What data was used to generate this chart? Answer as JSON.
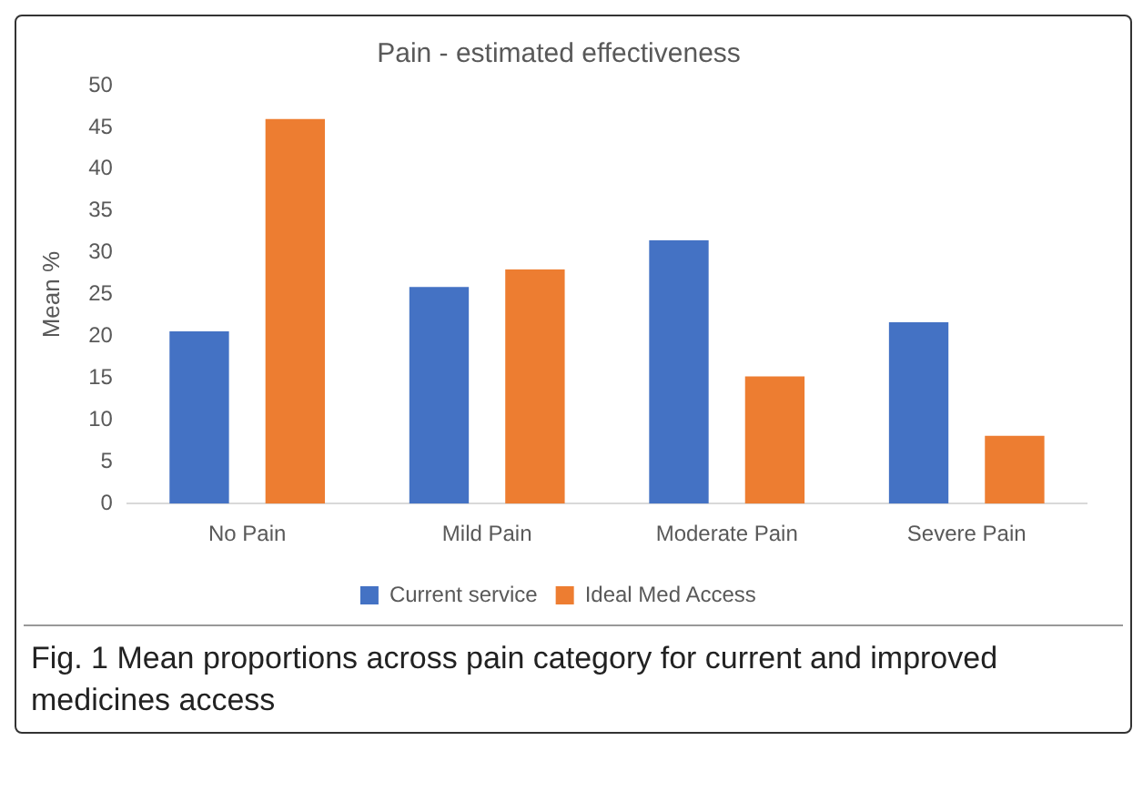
{
  "chart_data": {
    "type": "bar",
    "title": "Pain - estimated effectiveness",
    "ylabel": "Mean %",
    "categories": [
      "No Pain",
      "Mild Pain",
      "Moderate Pain",
      "Severe Pain"
    ],
    "series": [
      {
        "name": "Current service",
        "color": "#4472c4",
        "values": [
          20.6,
          25.9,
          31.5,
          21.7
        ]
      },
      {
        "name": "Ideal Med Access",
        "color": "#ed7d31",
        "values": [
          46.0,
          28.0,
          15.2,
          8.1
        ]
      }
    ],
    "ylim": [
      0,
      50
    ],
    "yticks": [
      0,
      5,
      10,
      15,
      20,
      25,
      30,
      35,
      40,
      45,
      50
    ],
    "grid": false,
    "legend": "bottom",
    "annotations": [
      "Fig. 1 Mean proportions across pain category for current and improved medicines access"
    ]
  }
}
